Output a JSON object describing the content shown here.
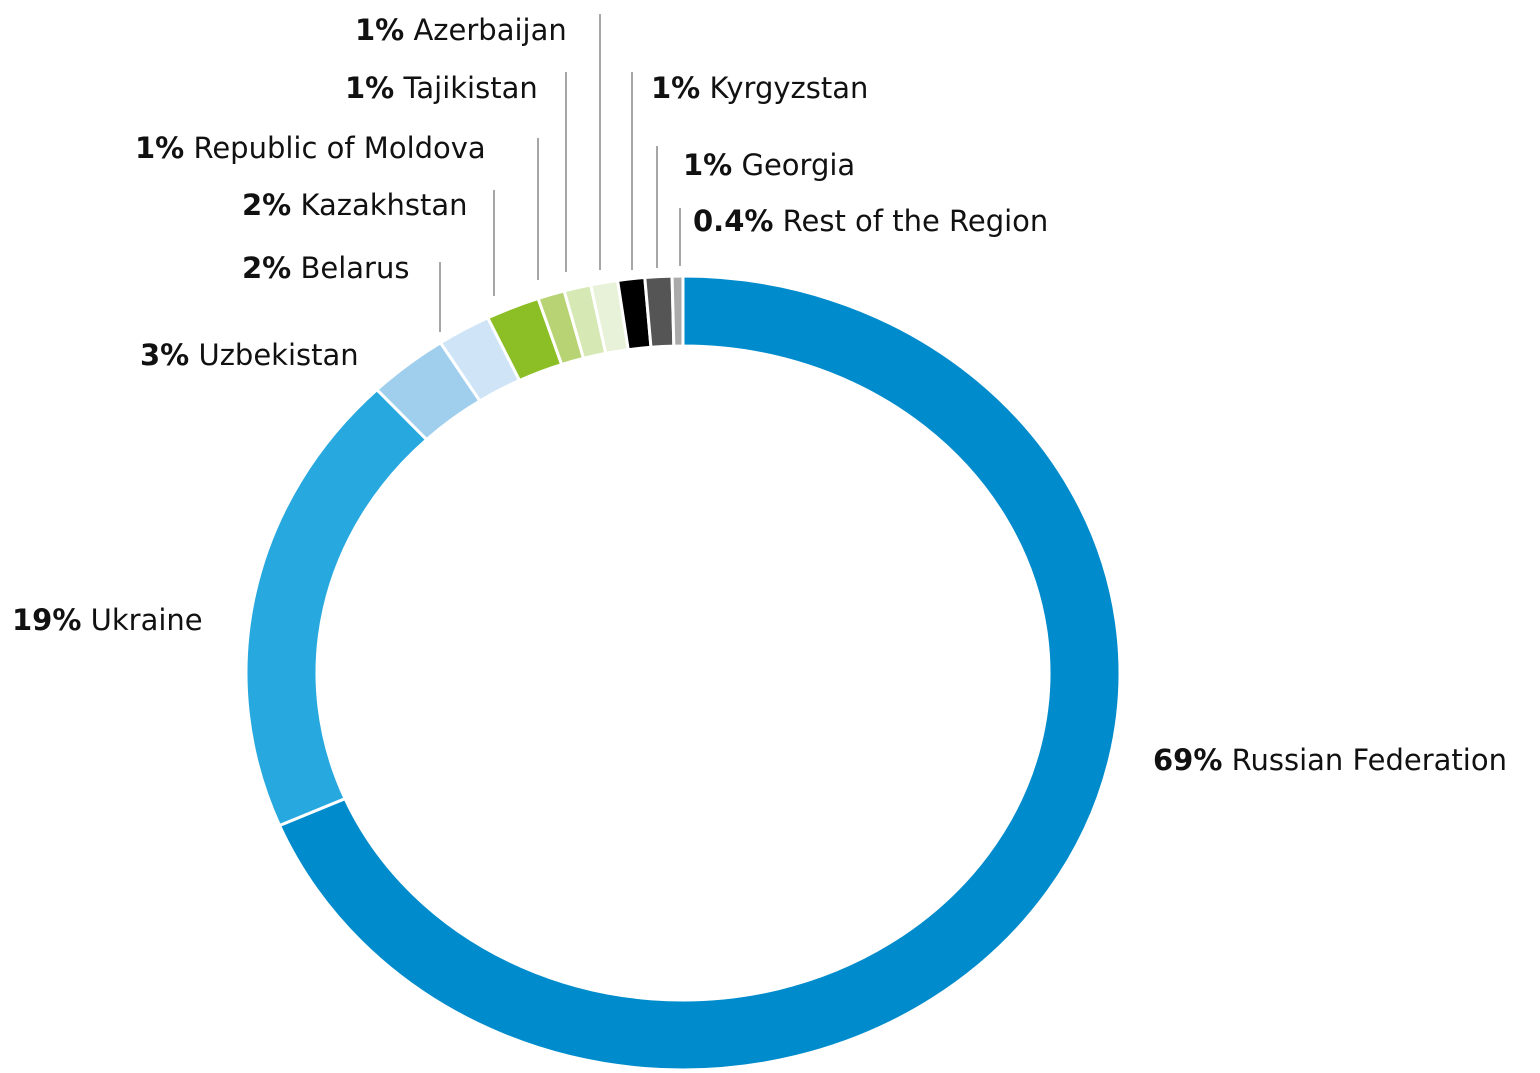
{
  "chart_data": {
    "type": "donut",
    "categories": [
      "Russian Federation",
      "Ukraine",
      "Uzbekistan",
      "Belarus",
      "Kazakhstan",
      "Republic of Moldova",
      "Tajikistan",
      "Azerbaijan",
      "Kyrgyzstan",
      "Georgia",
      "Rest of the Region"
    ],
    "values": [
      69,
      19,
      3,
      2,
      2,
      1,
      1,
      1,
      1,
      1,
      0.4
    ],
    "value_labels": [
      "69%",
      "19%",
      "3%",
      "2%",
      "2%",
      "1%",
      "1%",
      "1%",
      "1%",
      "1%",
      "0.4%"
    ],
    "colors": [
      "#008ccc",
      "#27a9e0",
      "#a0cfee",
      "#cfe5f7",
      "#8cbf26",
      "#b8d373",
      "#d6e8b4",
      "#e8f2d8",
      "#000000",
      "#555555",
      "#aaaaaa"
    ]
  }
}
